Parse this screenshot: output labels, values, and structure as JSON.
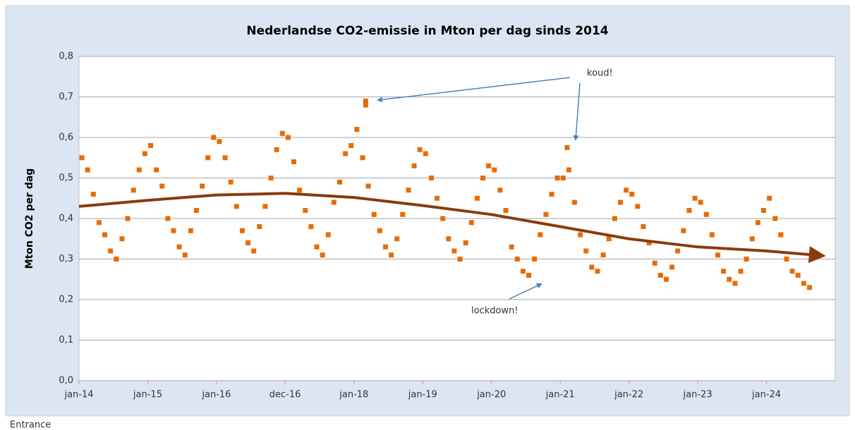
{
  "chart_data": {
    "type": "scatter",
    "title": "Nederlandse CO2-emissie in Mton per dag sinds 2014",
    "y_label": "Mton CO2 per dag",
    "xlim": [
      2014,
      2025
    ],
    "ylim": [
      0,
      0.8
    ],
    "xticks": [
      {
        "value": 2014,
        "label": "jan-14"
      },
      {
        "value": 2015,
        "label": "jan-15"
      },
      {
        "value": 2016,
        "label": "jan-16"
      },
      {
        "value": 2016.997,
        "label": "dec-16"
      },
      {
        "value": 2018,
        "label": "jan-18"
      },
      {
        "value": 2019,
        "label": "jan-19"
      },
      {
        "value": 2020,
        "label": "jan-20"
      },
      {
        "value": 2021,
        "label": "jan-21"
      },
      {
        "value": 2022,
        "label": "jan-22"
      },
      {
        "value": 2023,
        "label": "jan-23"
      },
      {
        "value": 2024,
        "label": "jan-24"
      }
    ],
    "yticks": [
      {
        "value": 0,
        "label": "0,0"
      },
      {
        "value": 0.1,
        "label": "0,1"
      },
      {
        "value": 0.2,
        "label": "0,2"
      },
      {
        "value": 0.3,
        "label": "0,3"
      },
      {
        "value": 0.4,
        "label": "0,4"
      },
      {
        "value": 0.5,
        "label": "0,5"
      },
      {
        "value": 0.6,
        "label": "0,6"
      },
      {
        "value": 0.7,
        "label": "0,7"
      },
      {
        "value": 0.8,
        "label": "0,8"
      }
    ],
    "grid": true,
    "annotations": [
      "koud!",
      "lockdown!"
    ],
    "series": [
      {
        "type": "scatter",
        "color": "#e46c0a",
        "x": [
          2014.042,
          2014.125,
          2014.208,
          2014.292,
          2014.375,
          2014.458,
          2014.542,
          2014.625,
          2014.708,
          2014.792,
          2014.875,
          2014.958,
          2015.042,
          2015.125,
          2015.208,
          2015.292,
          2015.375,
          2015.458,
          2015.542,
          2015.625,
          2015.708,
          2015.792,
          2015.875,
          2015.958,
          2016.042,
          2016.125,
          2016.208,
          2016.292,
          2016.375,
          2016.458,
          2016.542,
          2016.625,
          2016.708,
          2016.792,
          2016.875,
          2016.958,
          2017.042,
          2017.125,
          2017.208,
          2017.292,
          2017.375,
          2017.458,
          2017.542,
          2017.625,
          2017.708,
          2017.792,
          2017.875,
          2017.958,
          2018.042,
          2018.125,
          2018.208,
          2018.292,
          2018.375,
          2018.458,
          2018.542,
          2018.625,
          2018.708,
          2018.792,
          2018.875,
          2018.958,
          2019.042,
          2019.125,
          2019.208,
          2019.292,
          2019.375,
          2019.458,
          2019.542,
          2019.625,
          2019.708,
          2019.792,
          2019.875,
          2019.958,
          2020.042,
          2020.125,
          2020.208,
          2020.292,
          2020.375,
          2020.458,
          2020.542,
          2020.625,
          2020.708,
          2020.792,
          2020.875,
          2020.958,
          2021.042,
          2021.125,
          2021.208,
          2021.292,
          2021.375,
          2021.458,
          2021.542,
          2021.625,
          2021.708,
          2021.792,
          2021.875,
          2021.958,
          2022.042,
          2022.125,
          2022.208,
          2022.292,
          2022.375,
          2022.458,
          2022.542,
          2022.625,
          2022.708,
          2022.792,
          2022.875,
          2022.958,
          2023.042,
          2023.125,
          2023.208,
          2023.292,
          2023.375,
          2023.458,
          2023.542,
          2023.625,
          2023.708,
          2023.792,
          2023.875,
          2023.958,
          2024.042,
          2024.125,
          2024.208,
          2024.292,
          2024.375,
          2024.458,
          2024.542,
          2024.625,
          2018.17,
          2018.17,
          2021.1
        ],
        "values": [
          0.55,
          0.52,
          0.46,
          0.39,
          0.36,
          0.32,
          0.3,
          0.35,
          0.4,
          0.47,
          0.52,
          0.56,
          0.58,
          0.52,
          0.48,
          0.4,
          0.37,
          0.33,
          0.31,
          0.37,
          0.42,
          0.48,
          0.55,
          0.6,
          0.59,
          0.55,
          0.49,
          0.43,
          0.37,
          0.34,
          0.32,
          0.38,
          0.43,
          0.5,
          0.57,
          0.61,
          0.6,
          0.54,
          0.47,
          0.42,
          0.38,
          0.33,
          0.31,
          0.36,
          0.44,
          0.49,
          0.56,
          0.58,
          0.62,
          0.55,
          0.48,
          0.41,
          0.37,
          0.33,
          0.31,
          0.35,
          0.41,
          0.47,
          0.53,
          0.57,
          0.56,
          0.5,
          0.45,
          0.4,
          0.35,
          0.32,
          0.3,
          0.34,
          0.39,
          0.45,
          0.5,
          0.53,
          0.52,
          0.47,
          0.42,
          0.33,
          0.3,
          0.27,
          0.26,
          0.3,
          0.36,
          0.41,
          0.46,
          0.5,
          0.5,
          0.52,
          0.44,
          0.36,
          0.32,
          0.28,
          0.27,
          0.31,
          0.35,
          0.4,
          0.44,
          0.47,
          0.46,
          0.43,
          0.38,
          0.34,
          0.29,
          0.26,
          0.25,
          0.28,
          0.32,
          0.37,
          0.42,
          0.45,
          0.44,
          0.41,
          0.36,
          0.31,
          0.27,
          0.25,
          0.24,
          0.27,
          0.3,
          0.35,
          0.39,
          0.42,
          0.45,
          0.4,
          0.36,
          0.3,
          0.27,
          0.26,
          0.24,
          0.23,
          0.69,
          0.68,
          0.575
        ]
      },
      {
        "type": "line",
        "color": "#8b3a0e",
        "x": [
          2014,
          2015,
          2016,
          2017,
          2018,
          2019,
          2020,
          2021,
          2022,
          2023,
          2024,
          2024.7
        ],
        "values": [
          0.43,
          0.445,
          0.458,
          0.462,
          0.452,
          0.432,
          0.41,
          0.38,
          0.35,
          0.33,
          0.32,
          0.31
        ]
      }
    ]
  },
  "footer": "Entrance"
}
